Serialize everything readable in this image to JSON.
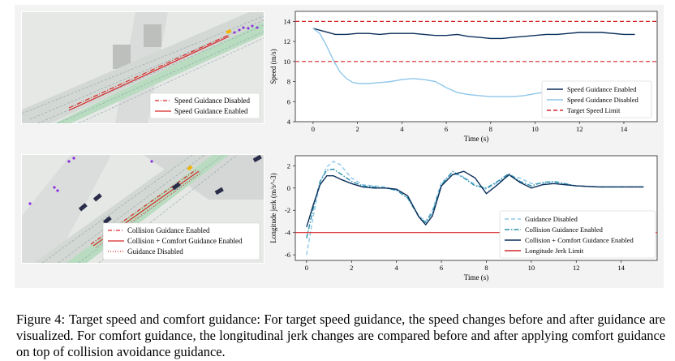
{
  "figure": {
    "caption_label": "Figure 4:",
    "caption_text": "Target speed and comfort guidance: For target speed guidance, the speed changes before and after guidance are visualized. For comfort guidance, the longitudinal jerk changes are compared before and after applying comfort guidance on top of collision avoidance guidance."
  },
  "sim_top": {
    "legend": [
      {
        "label": "Speed Guidance Disabled",
        "style": "dashdot",
        "color": "#d62728"
      },
      {
        "label": "Speed Guidance Enabled",
        "style": "solid",
        "color": "#d62728"
      }
    ]
  },
  "sim_bottom": {
    "legend": [
      {
        "label": "Collision Guidance Enabled",
        "style": "dashdot",
        "color": "#d62728"
      },
      {
        "label": "Collision + Comfort Guidance Enabled",
        "style": "solid",
        "color": "#d62728"
      },
      {
        "label": "Guidance Disabled",
        "style": "dotted",
        "color": "#d62728"
      }
    ]
  },
  "chart_data": [
    {
      "type": "line",
      "xlabel": "Time (s)",
      "ylabel": "Speed (m/s)",
      "xlim": [
        -0.8,
        15.5
      ],
      "ylim": [
        4,
        15
      ],
      "xticks": [
        0,
        2,
        4,
        6,
        8,
        10,
        12,
        14
      ],
      "yticks": [
        4,
        6,
        8,
        10,
        12,
        14
      ],
      "legend_position": "lower-right",
      "series": [
        {
          "name": "Speed Guidance Enabled",
          "color": "#0b2f5a",
          "style": "solid",
          "x": [
            0,
            0.5,
            1,
            1.5,
            2,
            2.5,
            3,
            3.5,
            4,
            4.5,
            5,
            5.5,
            6,
            6.5,
            7,
            7.5,
            8,
            8.5,
            9,
            9.5,
            10,
            10.5,
            11,
            11.5,
            12,
            12.5,
            13,
            13.5,
            14,
            14.5
          ],
          "y": [
            13.3,
            13.0,
            12.7,
            12.7,
            12.8,
            12.8,
            12.7,
            12.8,
            12.8,
            12.8,
            12.7,
            12.6,
            12.6,
            12.7,
            12.5,
            12.4,
            12.3,
            12.3,
            12.4,
            12.5,
            12.6,
            12.7,
            12.7,
            12.8,
            12.9,
            12.9,
            12.9,
            12.8,
            12.7,
            12.7
          ]
        },
        {
          "name": "Speed Guidance Disabled",
          "color": "#8fc7ea",
          "style": "solid",
          "x": [
            0,
            0.3,
            0.6,
            0.9,
            1.2,
            1.5,
            1.8,
            2.1,
            2.5,
            3,
            3.5,
            4,
            4.5,
            5,
            5.5,
            6,
            6.5,
            7,
            7.5,
            8,
            8.5,
            9,
            9.5,
            10,
            10.3
          ],
          "y": [
            13.3,
            12.8,
            11.6,
            10.2,
            9.0,
            8.3,
            7.9,
            7.8,
            7.8,
            7.9,
            8.0,
            8.2,
            8.3,
            8.2,
            8.0,
            7.4,
            6.9,
            6.7,
            6.6,
            6.5,
            6.5,
            6.5,
            6.6,
            6.8,
            6.9
          ]
        },
        {
          "name": "Target Speed Limit",
          "color": "#d62728",
          "style": "dashed",
          "hlines": [
            14,
            10
          ]
        }
      ]
    },
    {
      "type": "line",
      "xlabel": "Time (s)",
      "ylabel": "Longitude jerk (m/s^-3)",
      "xlim": [
        -0.5,
        15.6
      ],
      "ylim": [
        -6.5,
        2.9
      ],
      "xticks": [
        0,
        2,
        4,
        6,
        8,
        10,
        12,
        14
      ],
      "yticks": [
        -6,
        -4,
        -2,
        0,
        2
      ],
      "legend_position": "lower-right",
      "series": [
        {
          "name": "Guidance Disabled",
          "color": "#8fc7ea",
          "style": "dashed",
          "x": [
            0,
            0.3,
            0.6,
            0.9,
            1.2,
            1.5,
            2,
            2.5,
            3,
            3.5,
            4,
            4.5,
            5,
            5.3,
            5.6,
            6,
            6.5,
            7,
            7.5,
            8,
            8.5,
            9,
            9.5,
            10,
            10.5,
            11,
            12,
            13,
            14,
            15
          ],
          "y": [
            -6.0,
            -2.5,
            0.5,
            1.9,
            2.4,
            2.1,
            0.9,
            0.3,
            0.2,
            0.1,
            -0.2,
            -0.9,
            -2.5,
            -3.0,
            -2.0,
            0.5,
            1.3,
            1.0,
            0.3,
            -0.1,
            0.5,
            1.1,
            0.9,
            0.4,
            0.4,
            0.5,
            0.2,
            0.1,
            0.1,
            0.1
          ]
        },
        {
          "name": "Collision Guidance Enabled",
          "color": "#2a8fab",
          "style": "dashdot",
          "x": [
            0,
            0.3,
            0.6,
            0.9,
            1.2,
            1.5,
            2,
            2.5,
            3,
            3.5,
            4,
            4.5,
            5,
            5.3,
            5.6,
            6,
            6.5,
            7,
            7.5,
            8,
            8.5,
            9,
            9.5,
            10,
            10.5,
            11,
            12,
            13,
            14,
            15
          ],
          "y": [
            -4.5,
            -1.8,
            0.6,
            1.6,
            1.7,
            1.3,
            0.6,
            0.2,
            0.1,
            0.0,
            -0.2,
            -0.9,
            -2.6,
            -3.1,
            -2.2,
            0.3,
            1.5,
            0.9,
            0.2,
            0.0,
            0.6,
            1.3,
            0.6,
            0.2,
            0.5,
            0.6,
            0.2,
            0.1,
            0.1,
            0.1
          ]
        },
        {
          "name": "Collision + Comfort Guidance Enabled",
          "color": "#0b2f5a",
          "style": "solid",
          "x": [
            0,
            0.3,
            0.6,
            0.9,
            1.2,
            1.5,
            2,
            2.5,
            3,
            3.5,
            4,
            4.5,
            5,
            5.3,
            5.6,
            6,
            6.5,
            7,
            7.5,
            8,
            8.5,
            9,
            9.5,
            10,
            10.5,
            11,
            12,
            13,
            14,
            15
          ],
          "y": [
            -3.5,
            -1.5,
            0.3,
            1.1,
            1.1,
            0.8,
            0.4,
            0.1,
            0.0,
            0.0,
            -0.1,
            -0.7,
            -2.6,
            -3.3,
            -2.5,
            0.2,
            1.2,
            1.5,
            0.9,
            -0.5,
            0.3,
            1.2,
            0.5,
            0.0,
            0.3,
            0.4,
            0.2,
            0.1,
            0.1,
            0.1
          ]
        },
        {
          "name": "Longitude Jerk Limit",
          "color": "#d62728",
          "style": "solid",
          "hlines": [
            -4
          ]
        }
      ]
    }
  ]
}
